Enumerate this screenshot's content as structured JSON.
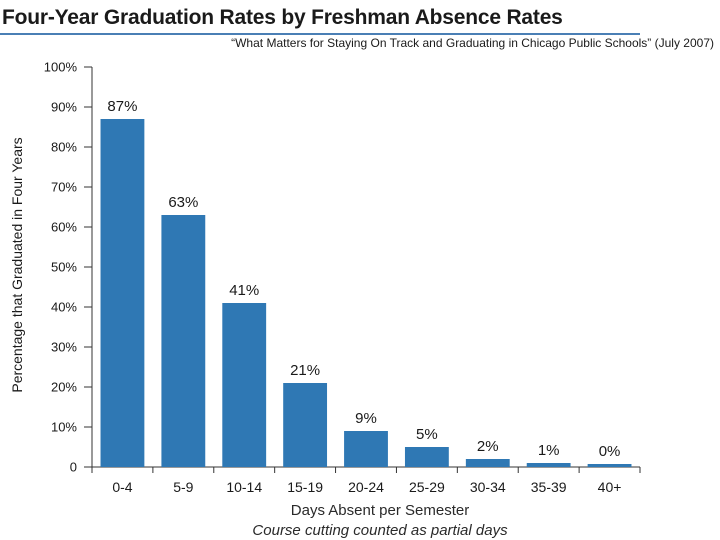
{
  "chart_data": {
    "type": "bar",
    "title": "Four-Year Graduation Rates by Freshman Absence Rates",
    "subtitle": "“What Matters for Staying On Track and Graduating in Chicago Public Schools” (July 2007)",
    "xlabel": "Days Absent per Semester",
    "xlabel_note": "Course cutting counted as partial days",
    "ylabel": "Percentage that Graduated in Four Years",
    "categories": [
      "0-4",
      "5-9",
      "10-14",
      "15-19",
      "20-24",
      "25-29",
      "30-34",
      "35-39",
      "40+"
    ],
    "values": [
      87,
      63,
      41,
      21,
      9,
      5,
      2,
      1,
      0
    ],
    "value_labels": [
      "87%",
      "63%",
      "41%",
      "21%",
      "9%",
      "5%",
      "2%",
      "1%",
      "0%"
    ],
    "ylim": [
      0,
      100
    ],
    "yticks": [
      0,
      10,
      20,
      30,
      40,
      50,
      60,
      70,
      80,
      90,
      100
    ],
    "ytick_labels": [
      "0",
      "10%",
      "20%",
      "30%",
      "40%",
      "50%",
      "60%",
      "70%",
      "80%",
      "90%",
      "100%"
    ],
    "grid": false,
    "legend": "none",
    "bar_color": "#2f78b4",
    "title_rule_color": "#4a7fb5"
  }
}
